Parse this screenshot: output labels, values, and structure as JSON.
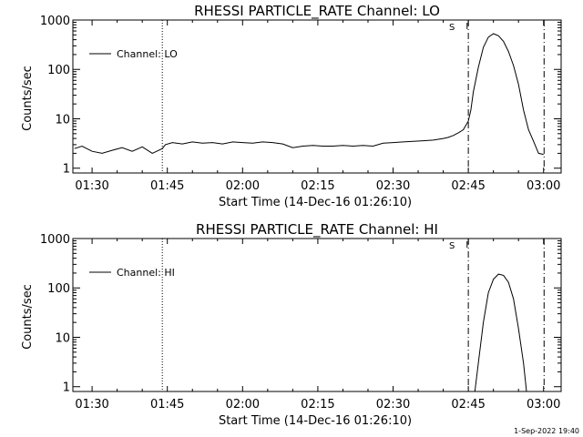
{
  "chart_data": [
    {
      "type": "line",
      "title": "RHESSI PARTICLE_RATE Channel: LO",
      "xlabel": "Start Time (14-Dec-16 01:26:10)",
      "ylabel": "Counts/sec",
      "x_unit": "minutes",
      "xlim": [
        86.17,
        183.5
      ],
      "ylim": [
        0.8,
        1000
      ],
      "y_scale": "log",
      "x_ticks": [
        90,
        105,
        120,
        135,
        150,
        165,
        180
      ],
      "x_tick_labels": [
        "01:30",
        "01:45",
        "02:00",
        "02:15",
        "02:30",
        "02:45",
        "03:00"
      ],
      "y_ticks": [
        1,
        10,
        100,
        1000
      ],
      "y_tick_labels": [
        "1",
        "10",
        "100",
        "1000"
      ],
      "legend": {
        "entries": [
          "Channel: LO"
        ],
        "position": "top-left"
      },
      "flag_marker": {
        "label": "S",
        "x": 165.3
      },
      "vlines": [
        {
          "x": 104.0,
          "style": "dotted"
        },
        {
          "x": 165.0,
          "style": "dash-dot"
        },
        {
          "x": 180.1,
          "style": "dash-dot"
        }
      ],
      "series": [
        {
          "style": "solid",
          "x": [
            86.5,
            88,
            90,
            92,
            94,
            96,
            98,
            100,
            102,
            104,
            104.6,
            106,
            108,
            110,
            112,
            114,
            116,
            118,
            120,
            122,
            124,
            126,
            128,
            130,
            132,
            134,
            136,
            138,
            140,
            142,
            144,
            146,
            148,
            150,
            152,
            154,
            156,
            158,
            160,
            161,
            162,
            163,
            164,
            165,
            165.5,
            166,
            167,
            168,
            169,
            170,
            171,
            172,
            173,
            174,
            175,
            176,
            177,
            178,
            179,
            180
          ],
          "y": [
            2.5,
            2.8,
            2.2,
            2.0,
            2.3,
            2.6,
            2.2,
            2.7,
            2.0,
            2.5,
            3.0,
            3.3,
            3.1,
            3.4,
            3.2,
            3.3,
            3.1,
            3.4,
            3.3,
            3.2,
            3.4,
            3.3,
            3.1,
            2.6,
            2.8,
            2.9,
            2.8,
            2.8,
            2.9,
            2.8,
            2.9,
            2.8,
            3.2,
            3.3,
            3.4,
            3.5,
            3.6,
            3.7,
            4.0,
            4.2,
            4.6,
            5.2,
            6.0,
            9.0,
            15,
            35,
            110,
            280,
            450,
            530,
            480,
            370,
            230,
            120,
            50,
            15,
            6,
            3.5,
            2.0,
            1.9
          ]
        }
      ]
    },
    {
      "type": "line",
      "title": "RHESSI PARTICLE_RATE Channel: HI",
      "xlabel": "Start Time (14-Dec-16 01:26:10)",
      "ylabel": "Counts/sec",
      "x_unit": "minutes",
      "xlim": [
        86.17,
        183.5
      ],
      "ylim": [
        0.8,
        1000
      ],
      "y_scale": "log",
      "x_ticks": [
        90,
        105,
        120,
        135,
        150,
        165,
        180
      ],
      "x_tick_labels": [
        "01:30",
        "01:45",
        "02:00",
        "02:15",
        "02:30",
        "02:45",
        "03:00"
      ],
      "y_ticks": [
        1,
        10,
        100,
        1000
      ],
      "y_tick_labels": [
        "1",
        "10",
        "100",
        "1000"
      ],
      "legend": {
        "entries": [
          "Channel: HI"
        ],
        "position": "top-left"
      },
      "flag_marker": {
        "label": "S",
        "x": 165.3
      },
      "vlines": [
        {
          "x": 104.0,
          "style": "dotted"
        },
        {
          "x": 165.0,
          "style": "dash-dot"
        },
        {
          "x": 180.1,
          "style": "dash-dot"
        }
      ],
      "series": [
        {
          "style": "solid",
          "x": [
            166.3,
            167,
            168,
            169,
            170,
            171,
            172,
            173,
            174,
            175,
            176,
            176.6
          ],
          "y": [
            0.8,
            3,
            20,
            80,
            150,
            190,
            180,
            130,
            60,
            15,
            3,
            0.8
          ]
        }
      ]
    }
  ],
  "footer": {
    "date": "1-Sep-2022 19:40"
  }
}
